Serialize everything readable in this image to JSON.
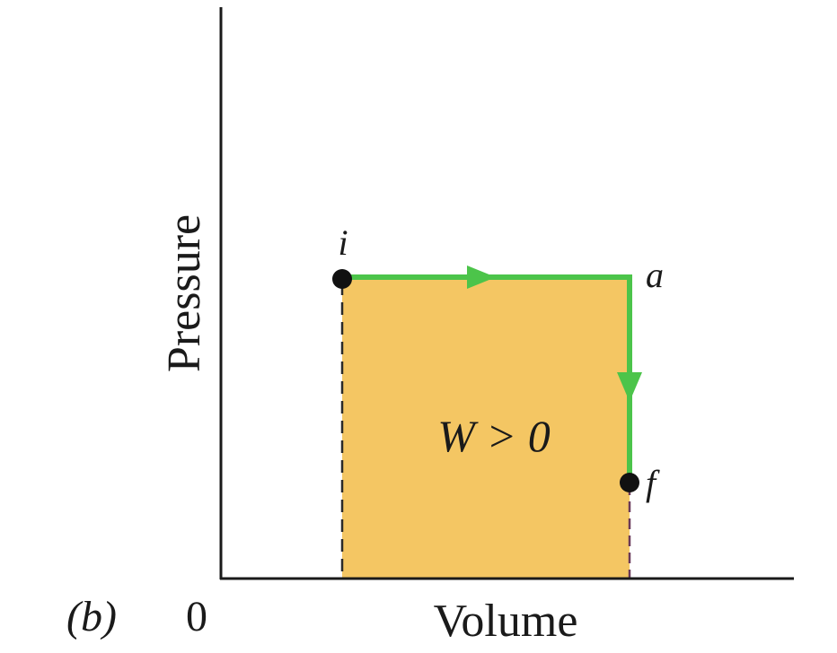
{
  "panel_label": "(b)",
  "origin_label": "0",
  "x_axis_label": "Volume",
  "y_axis_label": "Pressure",
  "points": {
    "initial": "i",
    "intermediate": "a",
    "final": "f"
  },
  "work_label": "W > 0",
  "colors": {
    "fill": "#f4c663",
    "path": "#4cc44a",
    "axis": "#1a1a1a",
    "text": "#1a1a1a"
  }
}
